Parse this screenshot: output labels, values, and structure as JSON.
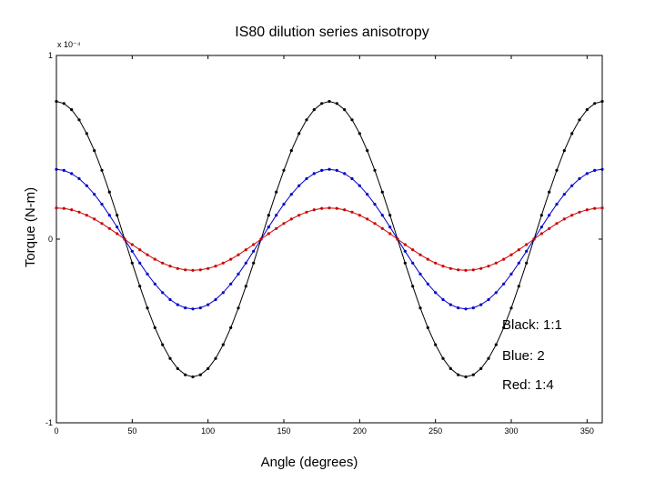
{
  "chart_data": {
    "type": "line",
    "title": "IS80 dilution series anisotropy",
    "xlabel": "Angle (degrees)",
    "ylabel": "Torque (N-m)",
    "exponent_label": "x 10⁻⁴",
    "xlim": [
      0,
      360
    ],
    "ylim": [
      -1,
      1
    ],
    "xticks": [
      0,
      50,
      100,
      150,
      200,
      250,
      300,
      350
    ],
    "xtick_labels": [
      "0",
      "50",
      "100",
      "150",
      "200",
      "250",
      "300",
      "350"
    ],
    "yticks": [
      -1,
      0,
      1
    ],
    "ytick_labels": [
      "-1",
      "0",
      "1"
    ],
    "grid": false,
    "legend_placement": "bottom-right",
    "legend_entries": [
      "Black: 1:1",
      "Blue: 2",
      "Red: 1:4"
    ],
    "angle_step": 5,
    "series": [
      {
        "amplitude": 0.75,
        "phase_deg": 0,
        "color": "#000000"
      },
      {
        "amplitude": 0.38,
        "phase_deg": 0,
        "color": "#0000cc"
      },
      {
        "amplitude": 0.17,
        "phase_deg": 0,
        "color": "#cc0000"
      }
    ]
  }
}
